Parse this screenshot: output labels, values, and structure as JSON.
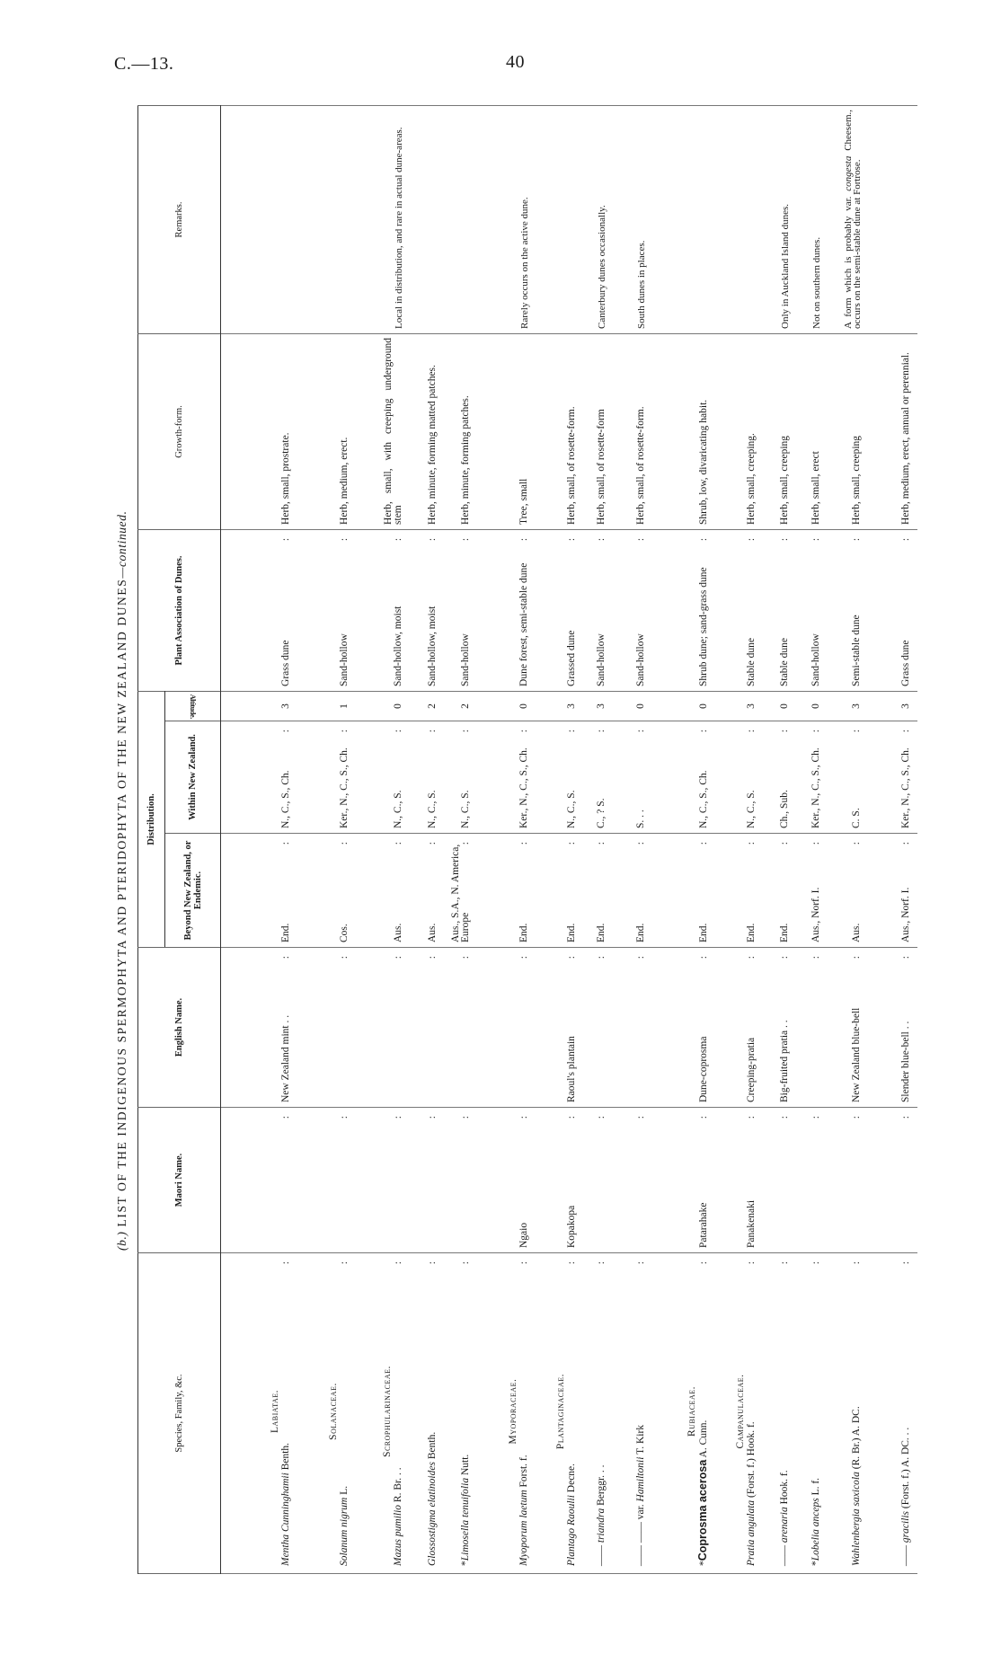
{
  "page_header": {
    "left": "C.—13.",
    "right": "40"
  },
  "title": {
    "prefix": "(b.)",
    "main": "LIST OF THE INDIGENOUS SPERMOPHYTA AND PTERIDOPHYTA OF THE NEW ZEALAND DUNES",
    "suffix": "—continued."
  },
  "columns": {
    "species": "Species, Family, &c.",
    "maori": "Maori Name.",
    "english": "English Name.",
    "distribution": "Distribution.",
    "beyond": "Beyond New Zealand, or Endemic.",
    "within": "Within New Zealand.",
    "altitude": "Altitude.",
    "plant": "Plant Association of Dunes.",
    "growth": "Growth-form.",
    "remarks": "Remarks."
  },
  "rows": [
    {
      "family": "Labiatae.",
      "prefix": "",
      "name": "Mentha Cunninghamii",
      "authority": " Benth.",
      "maori": "",
      "english": "New Zealand mint . .",
      "beyond": "End.",
      "within": "N., C., S., Ch.",
      "altitude": "3",
      "plant": "Grass dune",
      "growth": "Herb, small, prostrate.",
      "remarks": ""
    },
    {
      "family": "Solanaceae.",
      "prefix": "",
      "name": "Solanum nigrum",
      "authority": " L.",
      "maori": "",
      "english": "",
      "beyond": "Cos.",
      "within": "Ker., N., C., S., Ch.",
      "altitude": "1",
      "plant": "Sand-hollow",
      "growth": "Herb, medium, erect.",
      "remarks": ""
    },
    {
      "family": "Scrophularinaceae.",
      "prefix": "",
      "name": "Mazus pumilio",
      "authority": " R. Br. . .",
      "maori": "",
      "english": "",
      "beyond": "Aus.",
      "within": "N., C., S.",
      "altitude": "0",
      "plant": "Sand-hollow, moist",
      "growth": "Herb, small, with creeping underground stem",
      "remarks": "Local in distribution, and rare in actual dune-areas."
    },
    {
      "family": "",
      "prefix": "",
      "name": "Glossostigma elatinoides",
      "authority": " Benth.",
      "maori": "",
      "english": "",
      "beyond": "Aus.",
      "within": "N., C., S.",
      "altitude": "2",
      "plant": "Sand-hollow, moist",
      "growth": "Herb, minute, forming matted patches.",
      "remarks": ""
    },
    {
      "family": "",
      "prefix": "*",
      "name": "Limosella tenuifolia",
      "authority": " Nutt.",
      "maori": "",
      "english": "",
      "beyond": "Aus., S.A., N. America, Europe",
      "within": "N., C., S.",
      "altitude": "2",
      "plant": "Sand-hollow",
      "growth": "Herb, minute, forming patches.",
      "remarks": ""
    },
    {
      "family": "Myoporaceae.",
      "prefix": "",
      "name": "Myoporum laetum",
      "authority": " Forst. f.",
      "maori": "Ngaio",
      "english": "",
      "beyond": "End.",
      "within": "Ker., N., C., S., Ch.",
      "altitude": "0",
      "plant": "Dune forest, semi-stable dune",
      "growth": "Tree, small",
      "remarks": "Rarely occurs on the active dune."
    },
    {
      "family": "Plantaginaceae.",
      "prefix": "",
      "name": "Plantago Raoulii",
      "authority": " Decne.",
      "maori": "Kopakopa",
      "english": "Raoul's plantain",
      "beyond": "End.",
      "within": "N., C., S.",
      "altitude": "3",
      "plant": "Grassed dune",
      "growth": "Herb, small, of rosette-form.",
      "remarks": ""
    },
    {
      "family": "",
      "prefix": "—— ",
      "name": "triandra",
      "authority": " Berggr. . .",
      "maori": "",
      "english": "",
      "beyond": "End.",
      "within": "C., ? S.",
      "altitude": "3",
      "plant": "Sand-hollow",
      "growth": "Herb, small, of rosette-form",
      "remarks": "Canterbury dunes occasionally."
    },
    {
      "family": "",
      "prefix": "—— —— var. ",
      "name": "Hamiltonii",
      "authority": " T. Kirk",
      "maori": "",
      "english": "",
      "beyond": "End.",
      "within": "S. . .",
      "altitude": "0",
      "plant": "Sand-hollow",
      "growth": "Herb, small, of rosette-form.",
      "remarks": "South dunes in places."
    },
    {
      "family": "Rubiaceae.",
      "prefix": "*",
      "name": "Coprosma acerosa",
      "authority": " A. Cunn.",
      "bold": true,
      "maori": "Patarahake",
      "english": "Dune-coprosma",
      "beyond": "End.",
      "within": "N., C., S., Ch.",
      "altitude": "0",
      "plant": "Shrub dune; sand-grass dune",
      "growth": "Shrub, low, divaricating habit.",
      "remarks": ""
    },
    {
      "family": "Campanulaceae.",
      "prefix": "",
      "name": "Pratia angulata",
      "authority": " (Forst. f.) Hook. f.",
      "maori": "Panakenaki",
      "english": "Creeping-pratia",
      "beyond": "End.",
      "within": "N., C., S.",
      "altitude": "3",
      "plant": "Stable dune",
      "growth": "Herb, small, creeping.",
      "remarks": ""
    },
    {
      "family": "",
      "prefix": "—— ",
      "name": "arenaria",
      "authority": " Hook. f.",
      "maori": "",
      "english": "Big-fruited pratia . .",
      "beyond": "End.",
      "within": "Ch., Sub.",
      "altitude": "0",
      "plant": "Stable dune",
      "growth": "Herb, small, creeping",
      "remarks": "Only in Auckland Island dunes."
    },
    {
      "family": "",
      "prefix": "*",
      "name": "Lobelia anceps",
      "authority": " L. f.",
      "maori": "",
      "english": "",
      "beyond": "Aus., Norf. I.",
      "within": "Ker., N., C., S., Ch.",
      "altitude": "0",
      "plant": "Sand-hollow",
      "growth": "Herb, small, erect",
      "remarks": "Not on southern dunes."
    },
    {
      "family": "",
      "prefix": "",
      "name": "Wahlenbergia saxicola",
      "authority": " (R. Br.) A. DC.",
      "maori": "",
      "english": "New Zealand blue-bell",
      "beyond": "Aus.",
      "within": "C. S.",
      "altitude": "3",
      "plant": "Semi-stable dune",
      "growth": "Herb, small, creeping",
      "remarks": "A form which is probably var. ",
      "remarks_italic": "congesta",
      "remarks_after": " Cheesem., occurs on the semi-stable dune at Fortrose."
    },
    {
      "family": "",
      "prefix": "—— ",
      "name": "gracilis",
      "authority": " (Forst. f.) A. DC. . .",
      "maori": "",
      "english": "Slender blue-bell . .",
      "beyond": "Aus., Norf. I.",
      "within": "Ker., N., C., S., Ch.",
      "altitude": "3",
      "plant": "Grass dune",
      "growth": "Herb, medium, erect, annual or perennial.",
      "remarks": ""
    }
  ]
}
